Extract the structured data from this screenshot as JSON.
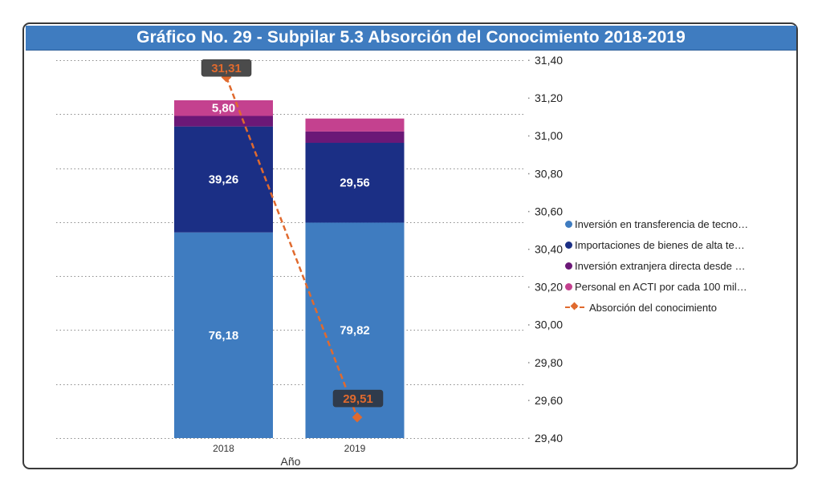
{
  "title": "Gráfico No. 29 - Subpilar 5.3 Absorción del Conocimiento 2018-2019",
  "chart_data": {
    "type": "bar",
    "stacked": true,
    "title": "Gráfico No. 29 - Subpilar 5.3 Absorción del Conocimiento 2018-2019",
    "xlabel": "Año",
    "ylabel": "",
    "categories": [
      "2018",
      "2019"
    ],
    "primary_axis": {
      "visible": false,
      "ylim": [
        0,
        140
      ],
      "gridline_step": 20,
      "grid": "dotted"
    },
    "secondary_axis": {
      "visible": true,
      "position": "right",
      "ylim": [
        29.4,
        31.4
      ],
      "ticks": [
        "29,40",
        "29,60",
        "29,80",
        "30,00",
        "30,20",
        "30,40",
        "30,60",
        "30,80",
        "31,00",
        "31,20",
        "31,40"
      ]
    },
    "series": [
      {
        "name": "Inversión en transferencia de tecno…",
        "color": "#3f7cc0",
        "axis": "primary",
        "values": [
          76.18,
          79.82
        ],
        "labels": [
          "76,18",
          "79,82"
        ]
      },
      {
        "name": "Importaciones de bienes de alta te…",
        "color": "#1b2f85",
        "axis": "primary",
        "values": [
          39.26,
          29.56
        ],
        "labels": [
          "39,26",
          "29,56"
        ]
      },
      {
        "name": "Inversión extranjera directa desde …",
        "color": "#6b1877",
        "axis": "primary",
        "values": [
          3.9,
          4.2
        ],
        "labels": [
          "",
          ""
        ]
      },
      {
        "name": "Personal en ACTI por cada 100 mil…",
        "color": "#c4418f",
        "axis": "primary",
        "values": [
          5.8,
          4.8
        ],
        "labels": [
          "5,80",
          ""
        ]
      },
      {
        "name": "Absorción del conocimiento",
        "type": "line",
        "style": "dashed",
        "marker": "diamond",
        "color": "#e06a2e",
        "axis": "secondary",
        "values": [
          31.31,
          29.51
        ],
        "labels": [
          "31,31",
          "29,51"
        ]
      }
    ],
    "legend_position": "right"
  }
}
